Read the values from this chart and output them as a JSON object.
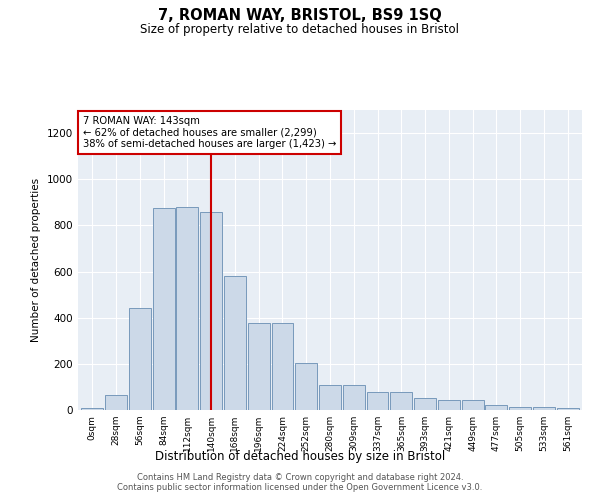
{
  "title": "7, ROMAN WAY, BRISTOL, BS9 1SQ",
  "subtitle": "Size of property relative to detached houses in Bristol",
  "xlabel": "Distribution of detached houses by size in Bristol",
  "ylabel": "Number of detached properties",
  "bar_color": "#ccd9e8",
  "bar_edge_color": "#7799bb",
  "bg_color": "#e8eef5",
  "annotation_box_color": "#cc0000",
  "vline_color": "#cc0000",
  "vline_position": 5.0,
  "annotation_text": "7 ROMAN WAY: 143sqm\n← 62% of detached houses are smaller (2,299)\n38% of semi-detached houses are larger (1,423) →",
  "footer": "Contains HM Land Registry data © Crown copyright and database right 2024.\nContains public sector information licensed under the Open Government Licence v3.0.",
  "categories": [
    "0sqm",
    "28sqm",
    "56sqm",
    "84sqm",
    "112sqm",
    "140sqm",
    "168sqm",
    "196sqm",
    "224sqm",
    "252sqm",
    "280sqm",
    "309sqm",
    "337sqm",
    "365sqm",
    "393sqm",
    "421sqm",
    "449sqm",
    "477sqm",
    "505sqm",
    "533sqm",
    "561sqm"
  ],
  "values": [
    10,
    65,
    440,
    875,
    880,
    860,
    580,
    375,
    375,
    205,
    110,
    110,
    80,
    80,
    50,
    42,
    42,
    20,
    15,
    15,
    10
  ],
  "ylim": [
    0,
    1300
  ],
  "yticks": [
    0,
    200,
    400,
    600,
    800,
    1000,
    1200
  ]
}
